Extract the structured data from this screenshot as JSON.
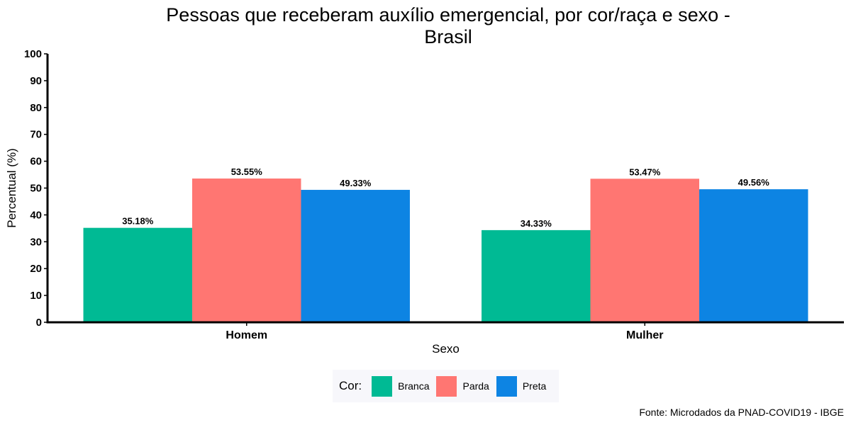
{
  "chart_data": {
    "type": "bar",
    "title": "Pessoas que receberam auxílio emergencial, por cor/raça e sexo - Brasil",
    "title_lines": [
      "Pessoas que receberam auxílio emergencial, por cor/raça e sexo -",
      "Brasil"
    ],
    "xlabel": "Sexo",
    "ylabel": "Percentual (%)",
    "ylim": [
      0,
      100
    ],
    "yticks": [
      0,
      10,
      20,
      30,
      40,
      50,
      60,
      70,
      80,
      90,
      100
    ],
    "categories": [
      "Homem",
      "Mulher"
    ],
    "series": [
      {
        "name": "Branca",
        "color": "#00BA94",
        "values": [
          35.18,
          34.33
        ],
        "labels": [
          "35.18%",
          "34.33%"
        ]
      },
      {
        "name": "Parda",
        "color": "#FF7672",
        "values": [
          53.55,
          53.47
        ],
        "labels": [
          "53.55%",
          "53.47%"
        ]
      },
      {
        "name": "Preta",
        "color": "#0D84E3",
        "values": [
          49.33,
          49.56
        ],
        "labels": [
          "49.33%",
          "49.56%"
        ]
      }
    ],
    "legend": {
      "title": "Cor:",
      "position": "bottom"
    },
    "grid": false,
    "caption": "Fonte: Microdados da PNAD-COVID19 - IBGE"
  }
}
